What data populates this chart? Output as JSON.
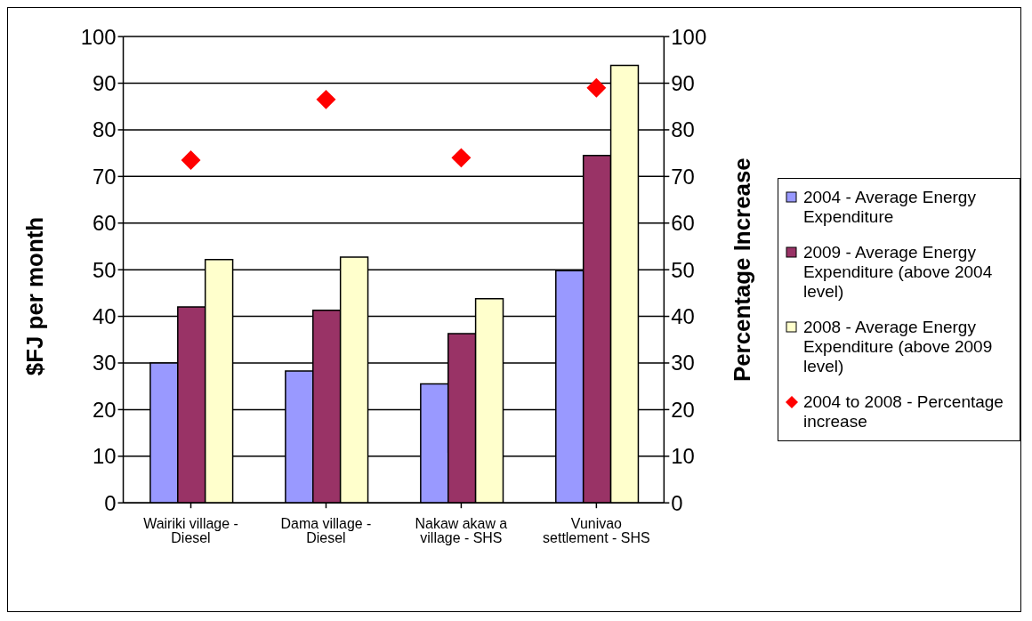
{
  "chart_data": {
    "type": "bar",
    "categories": [
      "Wairiki village - Diesel",
      "Dama village - Diesel",
      "Nakaw akaw a village - SHS",
      "Vunivao settlement - SHS"
    ],
    "series": [
      {
        "name": "2004 - Average Energy Expenditure",
        "color": "#9999ff",
        "values": [
          30,
          28.3,
          25.5,
          49.8
        ]
      },
      {
        "name": "2009 - Average Energy Expenditure (above 2004 level)",
        "color": "#993366",
        "values": [
          42,
          41.3,
          36.3,
          74.5
        ]
      },
      {
        "name": "2008 - Average Energy Expenditure (above 2009 level)",
        "color": "#ffffcc",
        "values": [
          52.2,
          52.7,
          43.8,
          93.8
        ]
      },
      {
        "name": "2004 to 2008 - Percentage increase",
        "type": "scatter",
        "axis": "y2",
        "marker": "diamond",
        "color": "#ff0000",
        "x": [
          "Wairiki village - Diesel",
          "Dama village - Diesel",
          "Nakaw akaw a village - SHS",
          "Vunivao settlement - SHS"
        ],
        "values": [
          73.5,
          86.5,
          74,
          89
        ]
      }
    ],
    "ylabel": "$FJ per month",
    "y2label": "Percentage Increase",
    "ylim": [
      0,
      100
    ],
    "yticks": [
      0,
      10,
      20,
      30,
      40,
      50,
      60,
      70,
      80,
      90,
      100
    ],
    "y2lim": [
      0,
      100
    ],
    "y2ticks": [
      0,
      10,
      20,
      30,
      40,
      50,
      60,
      70,
      80,
      90,
      100
    ],
    "grid": "y",
    "legend": "right"
  }
}
